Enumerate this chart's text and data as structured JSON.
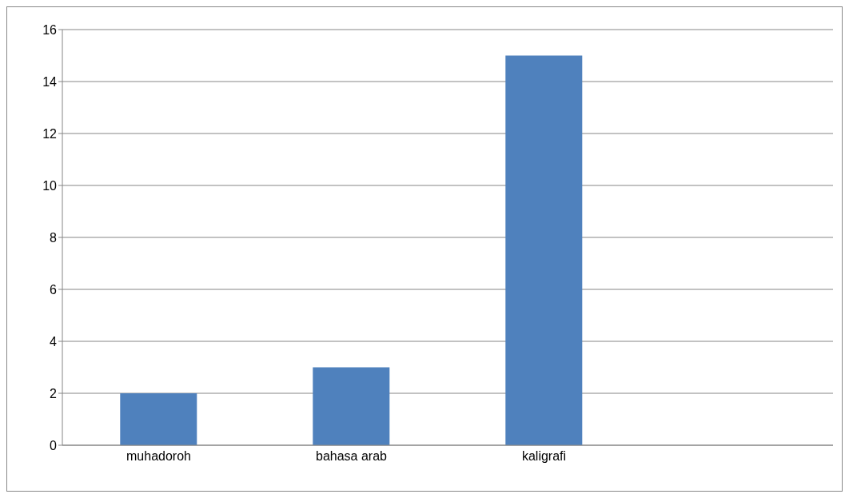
{
  "chart_data": {
    "type": "bar",
    "categories": [
      "muhadoroh",
      "bahasa arab",
      "kaligrafi",
      null
    ],
    "values": [
      2,
      3,
      15,
      null
    ],
    "color": "#4f81bd",
    "ylim": [
      0,
      16
    ],
    "yticks": [
      0,
      2,
      4,
      6,
      8,
      10,
      12,
      14,
      16
    ],
    "grid": "y",
    "legend": false
  }
}
